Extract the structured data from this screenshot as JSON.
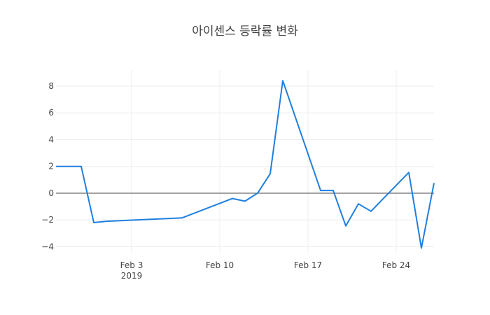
{
  "chart_data": {
    "type": "line",
    "title": "아이센스 등락률 변화",
    "xlabel": "",
    "ylabel": "",
    "x_tick_labels": [
      {
        "date": "2019-02-03",
        "label": "Feb 3",
        "sublabel": "2019"
      },
      {
        "date": "2019-02-10",
        "label": "Feb 10",
        "sublabel": ""
      },
      {
        "date": "2019-02-17",
        "label": "Feb 17",
        "sublabel": ""
      },
      {
        "date": "2019-02-24",
        "label": "Feb 24",
        "sublabel": ""
      }
    ],
    "y_ticks": [
      8,
      6,
      4,
      2,
      0,
      -2,
      -4
    ],
    "y_tick_labels": [
      "8",
      "6",
      "4",
      "2",
      "0",
      "−2",
      "−4"
    ],
    "xlim": [
      "2019-01-28",
      "2019-02-26"
    ],
    "ylim": [
      -4.5,
      9.2
    ],
    "grid": true,
    "series": [
      {
        "name": "",
        "color": "#1f7fe0",
        "x": [
          "2019-01-28",
          "2019-01-29",
          "2019-01-30",
          "2019-01-31",
          "2019-02-01",
          "2019-02-07",
          "2019-02-11",
          "2019-02-12",
          "2019-02-13",
          "2019-02-14",
          "2019-02-15",
          "2019-02-18",
          "2019-02-19",
          "2019-02-20",
          "2019-02-21",
          "2019-02-22",
          "2019-02-25",
          "2019-02-26",
          "2019-02-27"
        ],
        "values": [
          2.0,
          2.0,
          2.0,
          -2.2,
          -2.1,
          -1.85,
          -0.4,
          -0.6,
          0.0,
          1.45,
          8.4,
          0.2,
          0.2,
          -2.45,
          -0.8,
          -1.35,
          1.55,
          -4.1,
          0.75
        ]
      }
    ]
  }
}
